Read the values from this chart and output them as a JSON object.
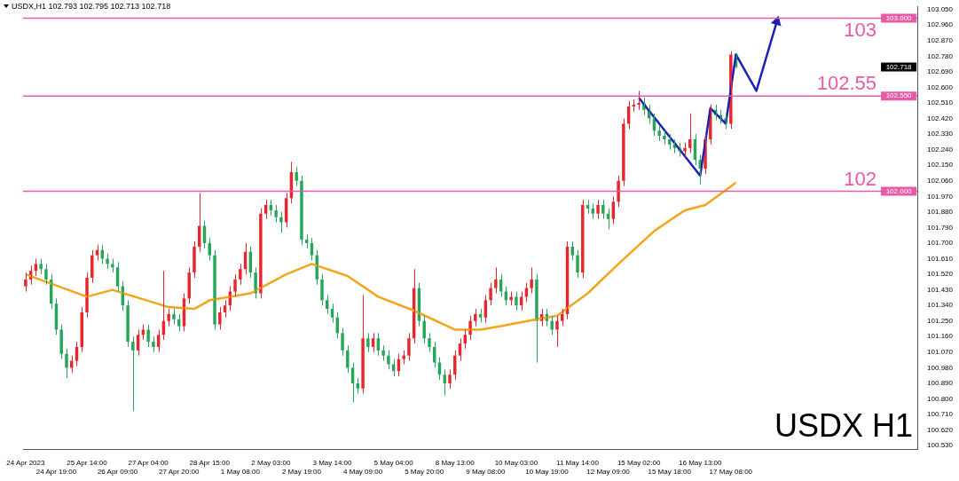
{
  "chart_data": {
    "type": "candlestick",
    "title": "USDX,H1  102.793 102.795 102.713 102.718",
    "categories": [
      "24 Apr 2023",
      null,
      null,
      null,
      null,
      null,
      "24 Apr 19:00",
      null,
      null,
      null,
      null,
      null,
      "25 Apr 14:00",
      null,
      null,
      null,
      null,
      null,
      "26 Apr 09:00",
      null,
      null,
      null,
      null,
      null,
      "27 Apr 04:00",
      null,
      null,
      null,
      null,
      null,
      "27 Apr 20:00",
      null,
      null,
      null,
      null,
      null,
      "28 Apr 15:00",
      null,
      null,
      null,
      null,
      null,
      "1 May 08:00",
      null,
      null,
      null,
      null,
      null,
      "2 May 03:00",
      null,
      null,
      null,
      null,
      null,
      "2 May 19:00",
      null,
      null,
      null,
      null,
      null,
      "3 May 14:00",
      null,
      null,
      null,
      null,
      null,
      "4 May 09:00",
      null,
      null,
      null,
      null,
      null,
      "5 May 04:00",
      null,
      null,
      null,
      null,
      null,
      "5 May 20:00",
      null,
      null,
      null,
      null,
      null,
      "8 May 13:00",
      null,
      null,
      null,
      null,
      null,
      "9 May 08:00",
      null,
      null,
      null,
      null,
      null,
      "10 May 03:00",
      null,
      null,
      null,
      null,
      null,
      "10 May 19:00",
      null,
      null,
      null,
      null,
      null,
      "11 May 14:00",
      null,
      null,
      null,
      null,
      null,
      "12 May 09:00",
      null,
      null,
      null,
      null,
      null,
      "15 May 02:00",
      null,
      null,
      null,
      null,
      null,
      "15 May 18:00",
      null,
      null,
      null,
      null,
      null,
      "16 May 13:00",
      null,
      null,
      null,
      null,
      null,
      "17 May 08:00",
      null,
      null,
      null,
      null,
      null,
      null,
      null,
      null,
      null,
      null,
      null,
      null,
      null,
      null,
      null,
      null,
      null,
      null,
      null,
      null,
      null,
      null,
      null,
      null,
      null,
      null,
      null,
      null,
      null,
      null,
      null,
      null,
      null,
      null,
      null,
      null
    ],
    "ohlc": [
      [
        101.45,
        101.53,
        101.42,
        101.49
      ],
      [
        101.49,
        101.57,
        101.46,
        101.54
      ],
      [
        101.54,
        101.61,
        101.51,
        101.58
      ],
      [
        101.58,
        101.61,
        101.52,
        101.55
      ],
      [
        101.55,
        101.58,
        101.46,
        101.49
      ],
      [
        101.49,
        101.52,
        101.32,
        101.35
      ],
      [
        101.35,
        101.38,
        101.17,
        101.2
      ],
      [
        101.2,
        101.23,
        101.03,
        101.06
      ],
      [
        101.06,
        101.09,
        100.92,
        100.98
      ],
      [
        100.98,
        101.05,
        100.95,
        101.02
      ],
      [
        101.02,
        101.13,
        100.99,
        101.1
      ],
      [
        101.1,
        101.33,
        101.07,
        101.3
      ],
      [
        101.3,
        101.53,
        101.27,
        101.5
      ],
      [
        101.5,
        101.66,
        101.47,
        101.63
      ],
      [
        101.63,
        101.69,
        101.6,
        101.66
      ],
      [
        101.66,
        101.69,
        101.58,
        101.61
      ],
      [
        101.61,
        101.64,
        101.55,
        101.58
      ],
      [
        101.58,
        101.61,
        101.53,
        101.56
      ],
      [
        101.56,
        101.59,
        101.42,
        101.45
      ],
      [
        101.45,
        101.48,
        101.31,
        101.34
      ],
      [
        101.34,
        101.37,
        101.1,
        101.13
      ],
      [
        101.13,
        101.16,
        100.73,
        101.08
      ],
      [
        101.08,
        101.2,
        101.05,
        101.17
      ],
      [
        101.17,
        101.23,
        101.14,
        101.2
      ],
      [
        101.2,
        101.23,
        101.1,
        101.13
      ],
      [
        101.13,
        101.16,
        101.07,
        101.1
      ],
      [
        101.1,
        101.2,
        101.07,
        101.17
      ],
      [
        101.17,
        101.54,
        101.14,
        101.25
      ],
      [
        101.25,
        101.32,
        101.22,
        101.29
      ],
      [
        101.29,
        101.32,
        101.23,
        101.26
      ],
      [
        101.26,
        101.29,
        101.19,
        101.22
      ],
      [
        101.22,
        101.41,
        101.19,
        101.38
      ],
      [
        101.38,
        101.56,
        101.35,
        101.53
      ],
      [
        101.53,
        101.71,
        101.5,
        101.68
      ],
      [
        101.68,
        101.99,
        101.65,
        101.8
      ],
      [
        101.8,
        101.83,
        101.67,
        101.7
      ],
      [
        101.7,
        101.73,
        101.6,
        101.63
      ],
      [
        101.63,
        101.66,
        101.2,
        101.23
      ],
      [
        101.23,
        101.33,
        101.2,
        101.3
      ],
      [
        101.3,
        101.37,
        101.27,
        101.34
      ],
      [
        101.34,
        101.45,
        101.31,
        101.42
      ],
      [
        101.42,
        101.52,
        101.39,
        101.49
      ],
      [
        101.49,
        101.58,
        101.46,
        101.55
      ],
      [
        101.55,
        101.7,
        101.52,
        101.65
      ],
      [
        101.65,
        101.68,
        101.5,
        101.53
      ],
      [
        101.53,
        101.56,
        101.38,
        101.41
      ],
      [
        101.41,
        101.9,
        101.38,
        101.87
      ],
      [
        101.87,
        101.95,
        101.84,
        101.92
      ],
      [
        101.92,
        101.95,
        101.86,
        101.89
      ],
      [
        101.89,
        101.92,
        101.82,
        101.85
      ],
      [
        101.85,
        101.88,
        101.76,
        101.82
      ],
      [
        101.82,
        101.99,
        101.79,
        101.96
      ],
      [
        101.96,
        102.17,
        101.93,
        102.11
      ],
      [
        102.11,
        102.14,
        102.03,
        102.06
      ],
      [
        102.06,
        102.09,
        101.69,
        101.72
      ],
      [
        101.72,
        101.75,
        101.67,
        101.7
      ],
      [
        101.7,
        101.73,
        101.6,
        101.63
      ],
      [
        101.63,
        101.66,
        101.46,
        101.49
      ],
      [
        101.49,
        101.52,
        101.34,
        101.37
      ],
      [
        101.37,
        101.4,
        101.29,
        101.32
      ],
      [
        101.32,
        101.35,
        101.24,
        101.27
      ],
      [
        101.27,
        101.3,
        101.15,
        101.18
      ],
      [
        101.18,
        101.21,
        101.05,
        101.08
      ],
      [
        101.08,
        101.11,
        100.95,
        100.98
      ],
      [
        100.98,
        101.01,
        100.78,
        100.89
      ],
      [
        100.89,
        100.92,
        100.83,
        100.86
      ],
      [
        100.86,
        101.4,
        100.83,
        101.15
      ],
      [
        101.15,
        101.18,
        101.07,
        101.1
      ],
      [
        101.1,
        101.18,
        101.07,
        101.15
      ],
      [
        101.15,
        101.18,
        101.05,
        101.08
      ],
      [
        101.08,
        101.11,
        101.02,
        101.05
      ],
      [
        101.05,
        101.08,
        100.97,
        101.0
      ],
      [
        101.0,
        101.03,
        100.93,
        100.96
      ],
      [
        100.96,
        101.06,
        100.93,
        101.03
      ],
      [
        101.03,
        101.08,
        101.0,
        101.05
      ],
      [
        101.05,
        101.18,
        101.02,
        101.15
      ],
      [
        101.15,
        101.55,
        101.12,
        101.44
      ],
      [
        101.44,
        101.47,
        101.22,
        101.25
      ],
      [
        101.25,
        101.28,
        101.12,
        101.15
      ],
      [
        101.15,
        101.18,
        101.07,
        101.1
      ],
      [
        101.1,
        101.13,
        100.98,
        101.01
      ],
      [
        101.01,
        101.04,
        100.91,
        100.94
      ],
      [
        100.94,
        100.97,
        100.82,
        100.89
      ],
      [
        100.89,
        100.97,
        100.86,
        100.94
      ],
      [
        100.94,
        101.08,
        100.91,
        101.05
      ],
      [
        101.05,
        101.15,
        101.02,
        101.12
      ],
      [
        101.12,
        101.2,
        101.09,
        101.17
      ],
      [
        101.17,
        101.28,
        101.14,
        101.25
      ],
      [
        101.25,
        101.32,
        101.22,
        101.29
      ],
      [
        101.29,
        101.32,
        101.24,
        101.27
      ],
      [
        101.27,
        101.4,
        101.24,
        101.37
      ],
      [
        101.37,
        101.47,
        101.34,
        101.44
      ],
      [
        101.44,
        101.56,
        101.41,
        101.49
      ],
      [
        101.49,
        101.52,
        101.39,
        101.42
      ],
      [
        101.42,
        101.45,
        101.34,
        101.37
      ],
      [
        101.37,
        101.42,
        101.34,
        101.39
      ],
      [
        101.39,
        101.42,
        101.31,
        101.34
      ],
      [
        101.34,
        101.42,
        101.31,
        101.39
      ],
      [
        101.39,
        101.47,
        101.36,
        101.44
      ],
      [
        101.44,
        101.56,
        101.41,
        101.49
      ],
      [
        101.49,
        101.52,
        101.01,
        101.25
      ],
      [
        101.25,
        101.32,
        101.22,
        101.29
      ],
      [
        101.29,
        101.32,
        101.22,
        101.25
      ],
      [
        101.25,
        101.28,
        101.17,
        101.2
      ],
      [
        101.2,
        101.28,
        101.1,
        101.25
      ],
      [
        101.25,
        101.32,
        101.22,
        101.29
      ],
      [
        101.29,
        101.71,
        101.26,
        101.68
      ],
      [
        101.68,
        101.71,
        101.6,
        101.63
      ],
      [
        101.63,
        101.66,
        101.5,
        101.53
      ],
      [
        101.53,
        101.95,
        101.5,
        101.92
      ],
      [
        101.92,
        101.95,
        101.87,
        101.9
      ],
      [
        101.9,
        101.93,
        101.84,
        101.87
      ],
      [
        101.87,
        101.95,
        101.84,
        101.92
      ],
      [
        101.92,
        101.95,
        101.84,
        101.87
      ],
      [
        101.87,
        101.9,
        101.78,
        101.84
      ],
      [
        101.84,
        101.97,
        101.81,
        101.94
      ],
      [
        101.94,
        102.09,
        101.91,
        102.06
      ],
      [
        102.06,
        102.42,
        102.03,
        102.39
      ],
      [
        102.39,
        102.52,
        102.36,
        102.49
      ],
      [
        102.49,
        102.53,
        102.46,
        102.5
      ],
      [
        102.5,
        102.58,
        102.47,
        102.51
      ],
      [
        102.51,
        102.54,
        102.44,
        102.47
      ],
      [
        102.47,
        102.5,
        102.39,
        102.42
      ],
      [
        102.42,
        102.45,
        102.32,
        102.35
      ],
      [
        102.35,
        102.38,
        102.29,
        102.32
      ],
      [
        102.32,
        102.35,
        102.27,
        102.3
      ],
      [
        102.3,
        102.33,
        102.24,
        102.27
      ],
      [
        102.27,
        102.3,
        102.22,
        102.25
      ],
      [
        102.25,
        102.28,
        102.2,
        102.23
      ],
      [
        102.23,
        102.28,
        102.2,
        102.25
      ],
      [
        102.25,
        102.45,
        102.22,
        102.3
      ],
      [
        102.3,
        102.33,
        102.15,
        102.18
      ],
      [
        102.18,
        102.21,
        102.04,
        102.13
      ],
      [
        102.13,
        102.33,
        102.1,
        102.3
      ],
      [
        102.3,
        102.5,
        102.27,
        102.47
      ],
      [
        102.47,
        102.5,
        102.41,
        102.44
      ],
      [
        102.44,
        102.47,
        102.39,
        102.42
      ],
      [
        102.42,
        102.45,
        102.36,
        102.39
      ],
      [
        102.39,
        102.81,
        102.36,
        102.79
      ],
      [
        102.793,
        102.795,
        102.713,
        102.718
      ],
      null,
      null,
      null,
      null,
      null,
      null,
      null,
      null,
      null,
      null,
      null,
      null,
      null,
      null,
      null,
      null,
      null,
      null,
      null,
      null,
      null,
      null,
      null,
      null,
      null,
      null,
      null,
      null,
      null,
      null,
      null,
      null,
      null,
      null,
      null
    ],
    "colors": [
      "#e8262e",
      "#e8262e",
      "#e8262e",
      "#26a65b",
      "#26a65b",
      "#26a65b",
      "#26a65b",
      "#26a65b",
      "#26a65b",
      "#e8262e",
      "#e8262e",
      "#e8262e",
      "#e8262e",
      "#e8262e",
      "#e8262e",
      "#26a65b",
      "#26a65b",
      "#26a65b",
      "#26a65b",
      "#26a65b",
      "#26a65b",
      "#26a65b",
      "#e8262e",
      "#e8262e",
      "#26a65b",
      "#26a65b",
      "#e8262e",
      "#e8262e",
      "#e8262e",
      "#26a65b",
      "#26a65b",
      "#e8262e",
      "#e8262e",
      "#e8262e",
      "#e8262e",
      "#26a65b",
      "#26a65b",
      "#26a65b",
      "#e8262e",
      "#e8262e",
      "#e8262e",
      "#e8262e",
      "#e8262e",
      "#e8262e",
      "#26a65b",
      "#26a65b",
      "#e8262e",
      "#e8262e",
      "#26a65b",
      "#26a65b",
      "#26a65b",
      "#e8262e",
      "#e8262e",
      "#26a65b",
      "#26a65b",
      "#26a65b",
      "#26a65b",
      "#26a65b",
      "#26a65b",
      "#26a65b",
      "#26a65b",
      "#26a65b",
      "#26a65b",
      "#26a65b",
      "#26a65b",
      "#26a65b",
      "#e8262e",
      "#26a65b",
      "#e8262e",
      "#26a65b",
      "#26a65b",
      "#26a65b",
      "#26a65b",
      "#e8262e",
      "#e8262e",
      "#e8262e",
      "#e8262e",
      "#26a65b",
      "#26a65b",
      "#26a65b",
      "#26a65b",
      "#26a65b",
      "#26a65b",
      "#e8262e",
      "#e8262e",
      "#e8262e",
      "#e8262e",
      "#e8262e",
      "#e8262e",
      "#26a65b",
      "#e8262e",
      "#e8262e",
      "#e8262e",
      "#26a65b",
      "#26a65b",
      "#e8262e",
      "#26a65b",
      "#e8262e",
      "#e8262e",
      "#e8262e",
      "#26a65b",
      "#e8262e",
      "#26a65b",
      "#26a65b",
      "#e8262e",
      "#e8262e",
      "#e8262e",
      "#26a65b",
      "#26a65b",
      "#e8262e",
      "#26a65b",
      "#26a65b",
      "#e8262e",
      "#26a65b",
      "#26a65b",
      "#e8262e",
      "#e8262e",
      "#e8262e",
      "#e8262e",
      "#e8262e",
      "#e8262e",
      "#26a65b",
      "#26a65b",
      "#26a65b",
      "#26a65b",
      "#26a65b",
      "#26a65b",
      "#26a65b",
      "#26a65b",
      "#e8262e",
      "#e8262e",
      "#26a65b",
      "#26a65b",
      "#e8262e",
      "#e8262e",
      "#26a65b",
      "#26a65b",
      "#26a65b",
      "#e8262e",
      "#26a65b",
      null,
      null,
      null,
      null,
      null,
      null,
      null,
      null,
      null,
      null,
      null,
      null,
      null,
      null,
      null,
      null,
      null,
      null,
      null,
      null,
      null,
      null,
      null,
      null,
      null,
      null,
      null,
      null,
      null,
      null,
      null,
      null,
      null,
      null,
      null
    ],
    "series": [
      {
        "type": "line",
        "color": "#f2a51c",
        "values": [
          101.52,
          null,
          null,
          null,
          null,
          null,
          null,
          null,
          null,
          null,
          null,
          null,
          101.39,
          null,
          null,
          null,
          null,
          101.43,
          null,
          null,
          null,
          null,
          null,
          null,
          null,
          null,
          null,
          null,
          101.33,
          null,
          null,
          null,
          null,
          101.32,
          null,
          null,
          101.37,
          null,
          null,
          null,
          null,
          null,
          null,
          null,
          101.41,
          null,
          null,
          null,
          null,
          null,
          null,
          101.52,
          null,
          null,
          null,
          null,
          101.58,
          null,
          null,
          null,
          null,
          null,
          null,
          101.51,
          null,
          null,
          null,
          null,
          null,
          101.39,
          null,
          null,
          null,
          null,
          null,
          null,
          101.31,
          null,
          null,
          null,
          null,
          null,
          null,
          null,
          101.2,
          null,
          null,
          null,
          null,
          101.2,
          null,
          null,
          null,
          101.22,
          null,
          null,
          null,
          null,
          null,
          null,
          101.26,
          null,
          null,
          null,
          101.28,
          null,
          null,
          null,
          null,
          null,
          101.41,
          null,
          null,
          null,
          null,
          null,
          101.58,
          null,
          null,
          null,
          null,
          null,
          null,
          101.77,
          null,
          null,
          null,
          null,
          null,
          101.89,
          null,
          null,
          null,
          101.92,
          null,
          null,
          null,
          null,
          null,
          102.05,
          null,
          null,
          null,
          null,
          null,
          null,
          null,
          null,
          null,
          null,
          null,
          null,
          null,
          null,
          null,
          null,
          null,
          null,
          null,
          null,
          null,
          null,
          null,
          null,
          null,
          null,
          null,
          null,
          null,
          null,
          null,
          null,
          null,
          null,
          null
        ]
      },
      {
        "type": "line",
        "color": "#1c22b4",
        "values": [
          null,
          null,
          null,
          null,
          null,
          null,
          null,
          null,
          null,
          null,
          null,
          null,
          null,
          null,
          null,
          null,
          null,
          null,
          null,
          null,
          null,
          null,
          null,
          null,
          null,
          null,
          null,
          null,
          null,
          null,
          null,
          null,
          null,
          null,
          null,
          null,
          null,
          null,
          null,
          null,
          null,
          null,
          null,
          null,
          null,
          null,
          null,
          null,
          null,
          null,
          null,
          null,
          null,
          null,
          null,
          null,
          null,
          null,
          null,
          null,
          null,
          null,
          null,
          null,
          null,
          null,
          null,
          null,
          null,
          null,
          null,
          null,
          null,
          null,
          null,
          null,
          null,
          null,
          null,
          null,
          null,
          null,
          null,
          null,
          null,
          null,
          null,
          null,
          null,
          null,
          null,
          null,
          null,
          null,
          null,
          null,
          null,
          null,
          null,
          null,
          null,
          null,
          null,
          null,
          null,
          null,
          null,
          null,
          null,
          null,
          null,
          null,
          null,
          null,
          null,
          null,
          null,
          null,
          null,
          null,
          102.54,
          null,
          null,
          null,
          null,
          null,
          null,
          null,
          null,
          null,
          null,
          null,
          102.09,
          null,
          102.48,
          null,
          null,
          102.39,
          null,
          102.79,
          null,
          null,
          null,
          102.58,
          null,
          null,
          null,
          102.98,
          null,
          null,
          null,
          null,
          null,
          null,
          null,
          null,
          null,
          null,
          null,
          null,
          null,
          null,
          null,
          null,
          null,
          null,
          null,
          null,
          null,
          null,
          null,
          null,
          null,
          null,
          null
        ]
      }
    ],
    "ylim": [
      100.51,
      103.065
    ],
    "yticks": [
      {
        "value": 100.53,
        "label": "100.530"
      },
      {
        "value": 100.62,
        "label": "100.620"
      },
      {
        "value": 100.71,
        "label": "100.710"
      },
      {
        "value": 100.8,
        "label": "100.800"
      },
      {
        "value": 100.89,
        "label": "100.890"
      },
      {
        "value": 100.98,
        "label": "100.980"
      },
      {
        "value": 101.07,
        "label": "101.070"
      },
      {
        "value": 101.16,
        "label": "101.160"
      },
      {
        "value": 101.25,
        "label": "101.250"
      },
      {
        "value": 101.34,
        "label": "101.340"
      },
      {
        "value": 101.43,
        "label": "101.430"
      },
      {
        "value": 101.52,
        "label": "101.520"
      },
      {
        "value": 101.61,
        "label": "101.610"
      },
      {
        "value": 101.7,
        "label": "101.700"
      },
      {
        "value": 101.79,
        "label": "101.790"
      },
      {
        "value": 101.88,
        "label": "101.880"
      },
      {
        "value": 101.97,
        "label": "101.970"
      },
      {
        "value": 102.06,
        "label": "102.060"
      },
      {
        "value": 102.15,
        "label": "102.150"
      },
      {
        "value": 102.24,
        "label": "102.240"
      },
      {
        "value": 102.33,
        "label": "102.330"
      },
      {
        "value": 102.42,
        "label": "102.420"
      },
      {
        "value": 102.51,
        "label": "102.510"
      },
      {
        "value": 102.6,
        "label": "102.600"
      },
      {
        "value": 102.69,
        "label": "102.690"
      },
      {
        "value": 102.78,
        "label": "102.780"
      },
      {
        "value": 102.87,
        "label": "102.870"
      },
      {
        "value": 102.96,
        "label": "102.960"
      },
      {
        "value": 103.05,
        "label": "103.050"
      }
    ],
    "ref_lines": [
      {
        "axis": "y",
        "value": 103,
        "label": "103",
        "color": "#e85aa8"
      },
      {
        "axis": "y",
        "value": 102.55,
        "label": "102.55",
        "color": "#e85aa8"
      },
      {
        "axis": "y",
        "value": 102,
        "label": "102",
        "color": "#e85aa8"
      }
    ],
    "annotations": [
      "USDX H1",
      "102.718",
      {
        "text": "103.000",
        "y": 103
      },
      {
        "text": "102.550",
        "y": 102.55
      },
      {
        "text": "102.000",
        "y": 102
      }
    ]
  }
}
